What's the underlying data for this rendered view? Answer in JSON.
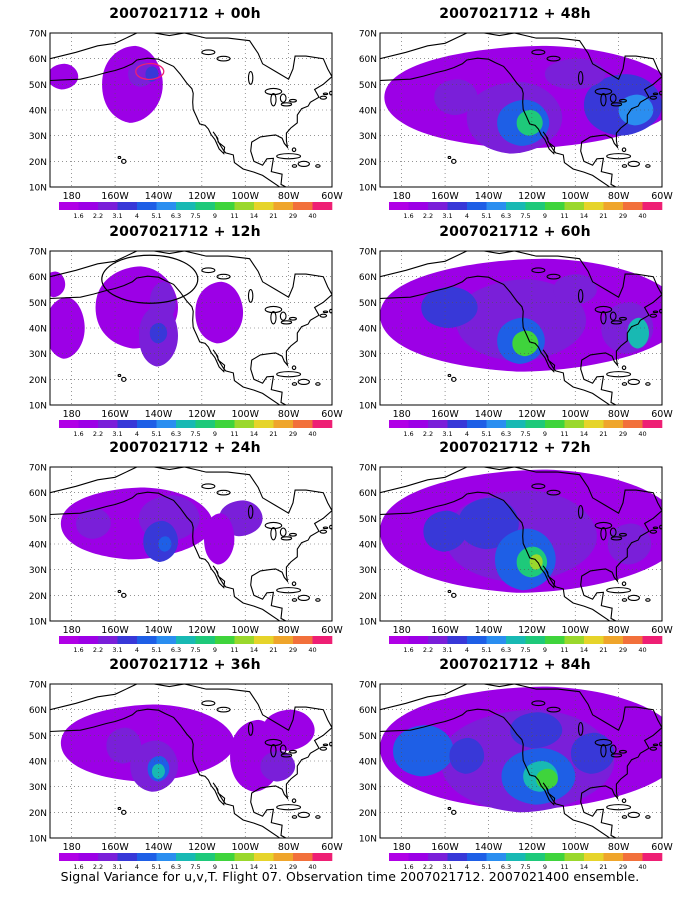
{
  "panels": [
    {
      "title": "2007021712 + 00h"
    },
    {
      "title": "2007021712 + 48h"
    },
    {
      "title": "2007021712 + 12h"
    },
    {
      "title": "2007021712 + 60h"
    },
    {
      "title": "2007021712 + 24h"
    },
    {
      "title": "2007021712 + 72h"
    },
    {
      "title": "2007021712 + 36h"
    },
    {
      "title": "2007021712 + 84h"
    }
  ],
  "lat_labels": [
    "70N",
    "60N",
    "50N",
    "40N",
    "30N",
    "20N",
    "10N"
  ],
  "lon_labels": [
    "180",
    "160W",
    "140W",
    "120W",
    "100W",
    "80W",
    "60W"
  ],
  "colorbar": {
    "labels": [
      "1.6",
      "2.2",
      "3.1",
      "4",
      "5.1",
      "6.3",
      "7.5",
      "9",
      "11",
      "14",
      "21",
      "29",
      "40"
    ],
    "colors": [
      "#9c00e6",
      "#7a1fd9",
      "#3838d8",
      "#1e5fe6",
      "#2a8ef0",
      "#18b9b3",
      "#1ec97a",
      "#3fd43c",
      "#9ad82c",
      "#e6d42a",
      "#efa52b",
      "#f2703b",
      "#ee1f74"
    ]
  },
  "footer": "Signal Variance for u,v,T. Flight 07. Observation time 2007021712. 2007021400 ensemble."
}
